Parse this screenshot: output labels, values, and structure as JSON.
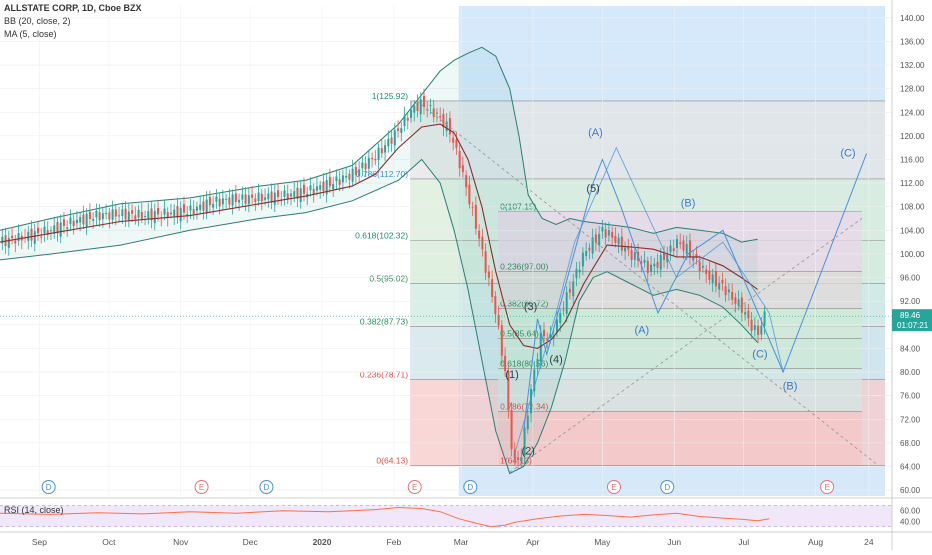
{
  "header": {
    "symbol_line": "ALLSTATE CORP, 1D, Cboe BZX",
    "bb_label": "BB (20, close, 2)",
    "ma_label": "MA (5, close)"
  },
  "rsi": {
    "label": "RSI (14, close)",
    "levels": [
      70,
      30
    ],
    "ticks": [
      "60.00",
      "40.00"
    ]
  },
  "price_tag": {
    "value": "89.46",
    "countdown": "01:07:21"
  },
  "colors": {
    "up": "#26a69a",
    "down": "#ef5350",
    "bb": "#26a69a",
    "ma": "#8b2b2b",
    "wave": "#4a90d9",
    "highlight_bg": "#d6e9fb",
    "tag_bg": "#26a69a",
    "rsi_line": "#ff7043",
    "rsi_band": "#e9ddf7"
  },
  "chart_data": {
    "type": "candlestick",
    "title": "ALLSTATE CORP, 1D, Cboe BZX",
    "y_axis": {
      "ticks": [
        60,
        64,
        68,
        72,
        76,
        80,
        84,
        88,
        92,
        96,
        100,
        104,
        108,
        112,
        116,
        120,
        124,
        128,
        132,
        136,
        140
      ],
      "tick_labels": [
        "60.00",
        "64.00",
        "68.00",
        "72.00",
        "76.00",
        "80.00",
        "84.00",
        "88.00",
        "92.00",
        "96.00",
        "100.00",
        "104.00",
        "108.00",
        "112.00",
        "116.00",
        "120.00",
        "124.00",
        "128.00",
        "132.00",
        "136.00",
        "140.00"
      ],
      "ylim": [
        59,
        142
      ]
    },
    "x_axis": {
      "labels": [
        "Sep",
        "Oct",
        "Nov",
        "Dec",
        "2020",
        "Feb",
        "Mar",
        "Apr",
        "May",
        "Jun",
        "Jul",
        "Aug",
        "24"
      ],
      "label_day": [
        -5,
        25,
        56,
        86,
        117,
        148,
        177,
        208,
        238,
        269,
        299,
        330,
        353
      ],
      "range": [
        -22,
        363
      ]
    },
    "close_path": [
      [
        -22,
        102
      ],
      [
        -10,
        103
      ],
      [
        0,
        104
      ],
      [
        10,
        105.5
      ],
      [
        20,
        106.5
      ],
      [
        30,
        106.8
      ],
      [
        40,
        106.5
      ],
      [
        50,
        106.8
      ],
      [
        60,
        107.3
      ],
      [
        70,
        108.8
      ],
      [
        80,
        109.3
      ],
      [
        90,
        109.5
      ],
      [
        100,
        109.8
      ],
      [
        110,
        110.5
      ],
      [
        120,
        111.8
      ],
      [
        130,
        113.5
      ],
      [
        140,
        116.5
      ],
      [
        148,
        120
      ],
      [
        156,
        124.5
      ],
      [
        160,
        125.5
      ],
      [
        166,
        123.8
      ],
      [
        172,
        121
      ],
      [
        176,
        116
      ],
      [
        180,
        110
      ],
      [
        184,
        104
      ],
      [
        188,
        97
      ],
      [
        192,
        90
      ],
      [
        196,
        80
      ],
      [
        198,
        70
      ],
      [
        200,
        64.5
      ],
      [
        203,
        66
      ],
      [
        206,
        74
      ],
      [
        209,
        81
      ],
      [
        212,
        87
      ],
      [
        215,
        85
      ],
      [
        218,
        88
      ],
      [
        222,
        92
      ],
      [
        226,
        96
      ],
      [
        230,
        100
      ],
      [
        234,
        102
      ],
      [
        238,
        104
      ],
      [
        242,
        103
      ],
      [
        246,
        101.5
      ],
      [
        250,
        100
      ],
      [
        254,
        99
      ],
      [
        258,
        97.5
      ],
      [
        262,
        98.5
      ],
      [
        266,
        100
      ],
      [
        270,
        102
      ],
      [
        274,
        101
      ],
      [
        278,
        99
      ],
      [
        282,
        97
      ],
      [
        286,
        95.5
      ],
      [
        290,
        94.5
      ],
      [
        294,
        92.5
      ],
      [
        298,
        91
      ],
      [
        302,
        88
      ],
      [
        305,
        86.5
      ],
      [
        308,
        89.5
      ]
    ],
    "bb_upper": [
      [
        -22,
        104
      ],
      [
        0,
        106
      ],
      [
        30,
        108.5
      ],
      [
        60,
        109.5
      ],
      [
        90,
        111.5
      ],
      [
        110,
        112.5
      ],
      [
        130,
        115
      ],
      [
        150,
        122
      ],
      [
        160,
        127
      ],
      [
        168,
        131
      ],
      [
        174,
        132.8
      ],
      [
        180,
        134
      ],
      [
        186,
        135
      ],
      [
        192,
        133.5
      ],
      [
        198,
        128
      ],
      [
        202,
        120
      ],
      [
        206,
        110
      ],
      [
        212,
        106
      ],
      [
        218,
        105
      ],
      [
        224,
        106
      ],
      [
        230,
        105.5
      ],
      [
        240,
        105
      ],
      [
        250,
        104.5
      ],
      [
        260,
        103.5
      ],
      [
        270,
        104.5
      ],
      [
        280,
        104
      ],
      [
        290,
        103.5
      ],
      [
        298,
        102
      ],
      [
        305,
        102.5
      ]
    ],
    "bb_lower": [
      [
        -22,
        99
      ],
      [
        0,
        100
      ],
      [
        30,
        101.5
      ],
      [
        60,
        104
      ],
      [
        90,
        106
      ],
      [
        110,
        107
      ],
      [
        130,
        109
      ],
      [
        150,
        112.5
      ],
      [
        160,
        116
      ],
      [
        168,
        112
      ],
      [
        174,
        104
      ],
      [
        180,
        94
      ],
      [
        186,
        82
      ],
      [
        192,
        70
      ],
      [
        198,
        62.8
      ],
      [
        204,
        64
      ],
      [
        210,
        68
      ],
      [
        216,
        74
      ],
      [
        222,
        82
      ],
      [
        228,
        92
      ],
      [
        234,
        96
      ],
      [
        240,
        97
      ],
      [
        250,
        95
      ],
      [
        260,
        93
      ],
      [
        270,
        94
      ],
      [
        280,
        93
      ],
      [
        290,
        91
      ],
      [
        298,
        88
      ],
      [
        305,
        85
      ]
    ],
    "ma": [
      [
        -22,
        102
      ],
      [
        0,
        103.5
      ],
      [
        30,
        105.5
      ],
      [
        60,
        106.5
      ],
      [
        90,
        108.5
      ],
      [
        110,
        109.8
      ],
      [
        130,
        111.5
      ],
      [
        140,
        113.5
      ],
      [
        150,
        118
      ],
      [
        160,
        121.5
      ],
      [
        168,
        122
      ],
      [
        174,
        120.5
      ],
      [
        180,
        116
      ],
      [
        186,
        108
      ],
      [
        192,
        97
      ],
      [
        198,
        88
      ],
      [
        204,
        84.5
      ],
      [
        210,
        84
      ],
      [
        216,
        85.5
      ],
      [
        222,
        88.5
      ],
      [
        230,
        95
      ],
      [
        240,
        101.5
      ],
      [
        250,
        101.2
      ],
      [
        260,
        100.8
      ],
      [
        270,
        99.5
      ],
      [
        280,
        99.5
      ],
      [
        290,
        98
      ],
      [
        298,
        96
      ],
      [
        305,
        94
      ]
    ],
    "highlight_range": {
      "x": [
        176,
        360
      ]
    },
    "fib_left": {
      "x": [
        155,
        360
      ],
      "levels": [
        {
          "ratio_label": "1(125.92)",
          "price": 125.92,
          "fill": "#e4e4e4"
        },
        {
          "ratio_label": "0.786(112.70)",
          "price": 112.7,
          "fill": "#d9ecd9"
        },
        {
          "ratio_label": "0.618(102.32)",
          "price": 102.32,
          "fill": "#d5ebd5"
        },
        {
          "ratio_label": "0.5(95.02)",
          "price": 95.02,
          "fill": "#cfe9e2"
        },
        {
          "ratio_label": "0.382(87.73)",
          "price": 87.73,
          "fill": "#cfe3ea"
        },
        {
          "ratio_label": "0.236(78.71)",
          "price": 78.71,
          "fill": "#f7caca"
        },
        {
          "ratio_label": "0(64.13)",
          "price": 64.13,
          "fill": "none"
        }
      ]
    },
    "fib_right": {
      "x": [
        193,
        350
      ],
      "levels": [
        {
          "ratio_label": "0(107.15)",
          "price": 107.15,
          "fill": "#ead6ea"
        },
        {
          "ratio_label": "0.236(97.00)",
          "price": 97.0,
          "fill": "#e0d8da"
        },
        {
          "ratio_label": "0.382(90.72)",
          "price": 90.72,
          "fill": "#cfead4"
        },
        {
          "ratio_label": "0.5(85.64)",
          "price": 85.64,
          "fill": "#cde8d6"
        },
        {
          "ratio_label": "0.618(80.56)",
          "price": 80.56,
          "fill": "#d3e7e4"
        },
        {
          "ratio_label": "0.786(73.34)",
          "price": 73.34,
          "fill": "#f6c5c5"
        },
        {
          "ratio_label": "1(64.13)",
          "price": 64.13,
          "fill": "none"
        }
      ]
    },
    "wave_path": [
      [
        204,
        70
      ],
      [
        210,
        89
      ],
      [
        214,
        83
      ],
      [
        234,
        112
      ],
      [
        238,
        116
      ],
      [
        246,
        108
      ],
      [
        262,
        90
      ],
      [
        275,
        100
      ],
      [
        290,
        104
      ],
      [
        316,
        80
      ],
      [
        352,
        117
      ]
    ],
    "wave_path2": [
      [
        200,
        66
      ],
      [
        218,
        90
      ],
      [
        226,
        102
      ],
      [
        244,
        118
      ],
      [
        270,
        96
      ],
      [
        290,
        102
      ],
      [
        310,
        90
      ],
      [
        316,
        80
      ]
    ],
    "trend_lines": [
      [
        [
          158,
          125.9
        ],
        [
          356,
          64.5
        ]
      ],
      [
        [
          198,
          63
        ],
        [
          350,
          106
        ]
      ]
    ],
    "wave_labels": [
      {
        "text": "(1)",
        "day": 199,
        "price": 79
      },
      {
        "text": "(2)",
        "day": 206,
        "price": 66
      },
      {
        "text": "(3)",
        "day": 207,
        "price": 90.5
      },
      {
        "text": "(4)",
        "day": 218,
        "price": 81.5
      },
      {
        "text": "(5)",
        "day": 234,
        "price": 110.5
      },
      {
        "text": "(A)",
        "day": 235,
        "price": 120
      },
      {
        "text": "(B)",
        "day": 275,
        "price": 108
      },
      {
        "text": "(A)",
        "day": 255,
        "price": 86.5
      },
      {
        "text": "(C)",
        "day": 306,
        "price": 82.5
      },
      {
        "text": "(B)",
        "day": 319,
        "price": 77
      },
      {
        "text": "(C)",
        "day": 344,
        "price": 116.5
      }
    ],
    "event_markers": [
      {
        "letter": "D",
        "day": -1
      },
      {
        "letter": "E",
        "day": 65
      },
      {
        "letter": "D",
        "day": 93
      },
      {
        "letter": "E",
        "day": 157
      },
      {
        "letter": "D",
        "day": 181
      },
      {
        "letter": "E",
        "day": 243
      },
      {
        "letter": "D",
        "day": 266
      },
      {
        "letter": "E",
        "day": 335
      }
    ],
    "rsi_path": [
      [
        -22,
        55
      ],
      [
        0,
        53
      ],
      [
        20,
        56
      ],
      [
        40,
        54
      ],
      [
        60,
        58
      ],
      [
        80,
        55
      ],
      [
        100,
        60
      ],
      [
        120,
        58
      ],
      [
        140,
        62
      ],
      [
        150,
        66
      ],
      [
        160,
        64
      ],
      [
        168,
        58
      ],
      [
        176,
        45
      ],
      [
        184,
        36
      ],
      [
        190,
        30
      ],
      [
        196,
        33
      ],
      [
        200,
        38
      ],
      [
        210,
        45
      ],
      [
        220,
        50
      ],
      [
        230,
        53
      ],
      [
        240,
        51
      ],
      [
        250,
        48
      ],
      [
        260,
        52
      ],
      [
        270,
        55
      ],
      [
        280,
        49
      ],
      [
        290,
        46
      ],
      [
        298,
        44
      ],
      [
        305,
        41
      ],
      [
        310,
        45
      ]
    ],
    "last_price": 89.46
  }
}
